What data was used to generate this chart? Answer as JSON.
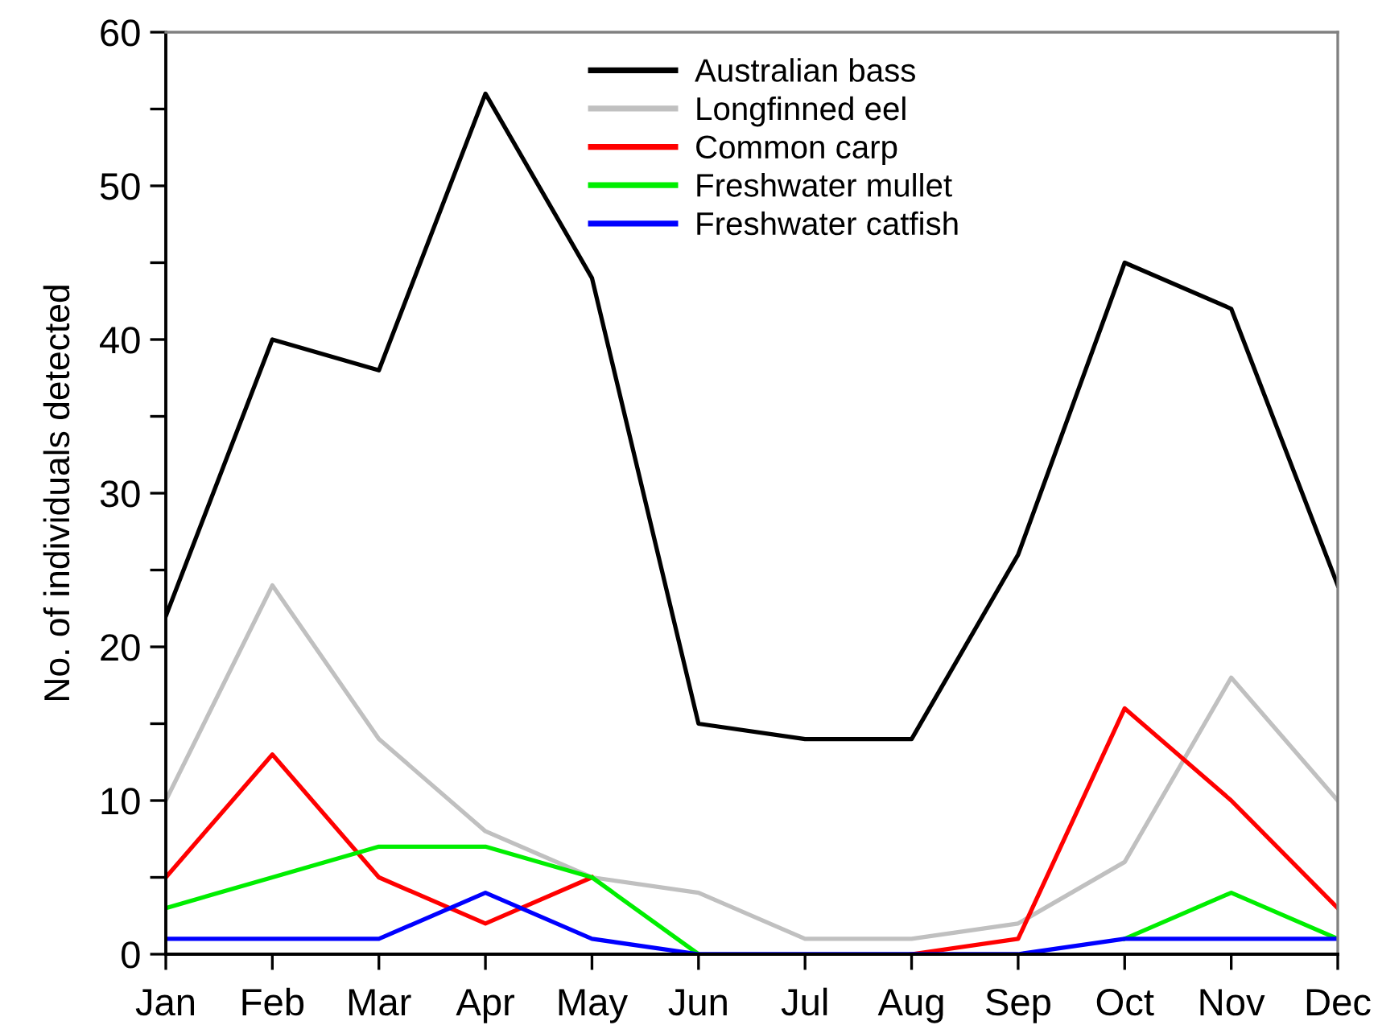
{
  "chart_data": {
    "type": "line",
    "ylabel": "No. of individuals detected",
    "categories": [
      "Jan",
      "Feb",
      "Mar",
      "Apr",
      "May",
      "Jun",
      "Jul",
      "Aug",
      "Sep",
      "Oct",
      "Nov",
      "Dec"
    ],
    "series": [
      {
        "name": "Australian bass",
        "color": "#000000",
        "values": [
          22,
          40,
          38,
          56,
          44,
          15,
          14,
          14,
          26,
          45,
          42,
          24
        ]
      },
      {
        "name": "Longfinned eel",
        "color": "#c0c0c0",
        "values": [
          10,
          24,
          14,
          8,
          5,
          4,
          1,
          1,
          2,
          6,
          18,
          10
        ]
      },
      {
        "name": "Common carp",
        "color": "#ff0000",
        "values": [
          5,
          13,
          5,
          2,
          5,
          null,
          null,
          0,
          1,
          16,
          10,
          3
        ]
      },
      {
        "name": "Freshwater mullet",
        "color": "#00ee00",
        "values": [
          3,
          5,
          7,
          7,
          5,
          0,
          null,
          null,
          null,
          1,
          4,
          1
        ]
      },
      {
        "name": "Freshwater catfish",
        "color": "#0000ff",
        "values": [
          1,
          1,
          1,
          4,
          1,
          0,
          0,
          0,
          0,
          1,
          1,
          1
        ]
      }
    ],
    "ylim": [
      0,
      60
    ],
    "yticks": [
      0,
      {
        "value": 5,
        "label": null
      },
      10,
      {
        "value": 15,
        "label": null
      },
      20,
      {
        "value": 25,
        "label": null
      },
      30,
      {
        "value": 35,
        "label": null
      },
      40,
      {
        "value": 45,
        "label": null
      },
      50,
      {
        "value": 55,
        "label": null
      },
      60
    ],
    "legend": "top",
    "line_style": "solid"
  }
}
